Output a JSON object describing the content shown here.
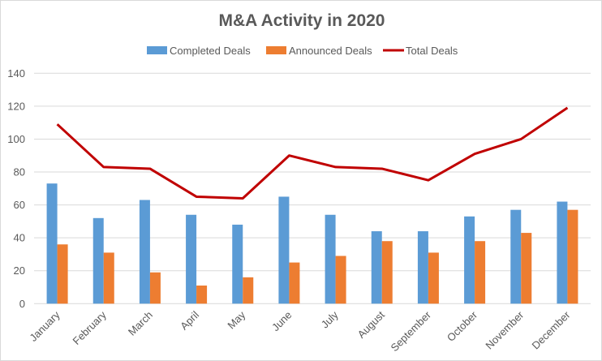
{
  "chart_data": {
    "type": "bar",
    "title": "M&A Activity in 2020",
    "categories": [
      "January",
      "February",
      "March",
      "April",
      "May",
      "June",
      "July",
      "August",
      "September",
      "October",
      "November",
      "December"
    ],
    "series": [
      {
        "name": "Completed Deals",
        "type": "bar",
        "color": "#5b9bd5",
        "values": [
          73,
          52,
          63,
          54,
          48,
          65,
          54,
          44,
          44,
          53,
          57,
          62
        ]
      },
      {
        "name": "Announced Deals",
        "type": "bar",
        "color": "#ed7d31",
        "values": [
          36,
          31,
          19,
          11,
          16,
          25,
          29,
          38,
          31,
          38,
          43,
          57
        ]
      },
      {
        "name": "Total Deals",
        "type": "line",
        "color": "#c00000",
        "values": [
          109,
          83,
          82,
          65,
          64,
          90,
          83,
          82,
          75,
          91,
          100,
          119
        ]
      }
    ],
    "ylim": [
      0,
      140
    ],
    "yticks": [
      0,
      20,
      40,
      60,
      80,
      100,
      120,
      140
    ],
    "grid": true,
    "legend_position": "top"
  }
}
